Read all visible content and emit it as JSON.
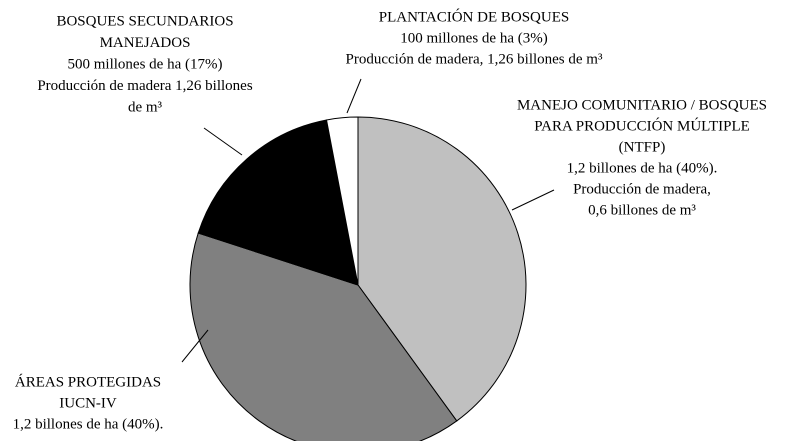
{
  "chart_data": {
    "type": "pie",
    "labels": [
      [
        "MANEJO COMUNITARIO / BOSQUES",
        "PARA PRODUCCIÓN MÚLTIPLE",
        "(NTFP)",
        "1,2 billones de ha (40%).",
        "Producción de madera,",
        "0,6 billones de m³"
      ],
      [
        "ÁREAS PROTEGIDAS",
        "IUCN-IV",
        "1,2 billones de ha (40%)."
      ],
      [
        "BOSQUES SECUNDARIOS",
        "MANEJADOS",
        "500 millones de ha (17%)",
        "Producción de madera 1,26 billones",
        "de m³"
      ],
      [
        "PLANTACIÓN DE BOSQUES",
        "100 millones de ha (3%)",
        "Producción de madera, 1,26 billones de m³"
      ]
    ],
    "values": [
      40,
      40,
      17,
      3
    ],
    "colors": [
      "#c0c0c0",
      "#808080",
      "#000000",
      "#ffffff"
    ]
  }
}
